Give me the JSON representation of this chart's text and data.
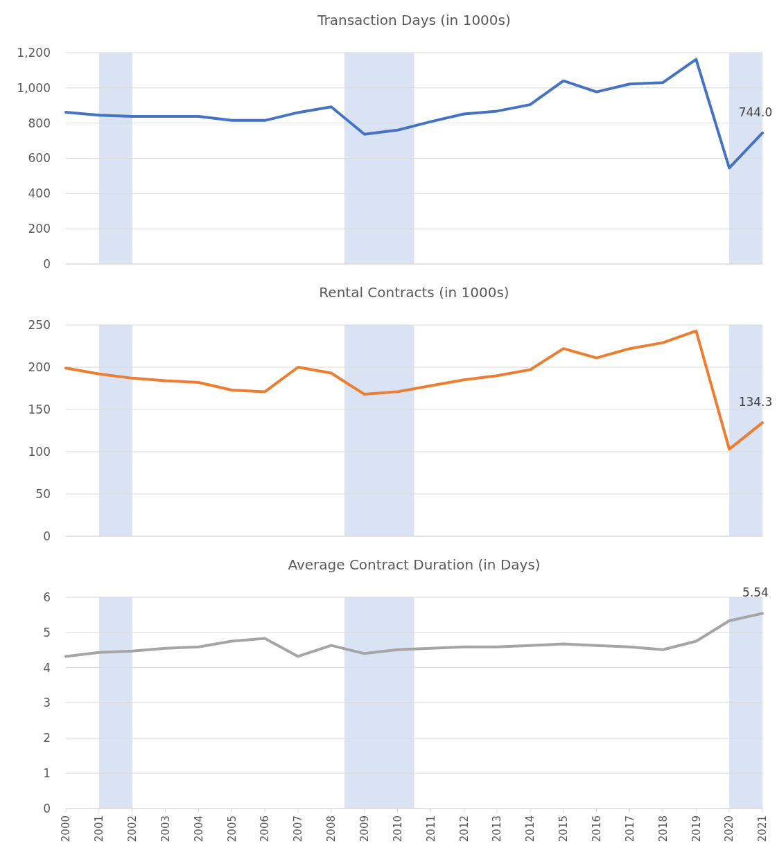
{
  "chart_data": [
    {
      "type": "line",
      "title": "Transaction Days (in 1000s)",
      "x": [
        2000,
        2001,
        2002,
        2003,
        2004,
        2005,
        2006,
        2007,
        2008,
        2009,
        2010,
        2011,
        2012,
        2013,
        2014,
        2015,
        2016,
        2017,
        2018,
        2019,
        2020,
        2021
      ],
      "xlim": [
        2000,
        2021
      ],
      "ylim": [
        0,
        1200
      ],
      "yticks": [
        {
          "value": 0,
          "label": "0"
        },
        {
          "value": 200,
          "label": "200"
        },
        {
          "value": 400,
          "label": "400"
        },
        {
          "value": 600,
          "label": "600"
        },
        {
          "value": 800,
          "label": "800"
        },
        {
          "value": 1000,
          "label": "1,000"
        },
        {
          "value": 1200,
          "label": "1,200"
        }
      ],
      "grid": "y",
      "tick_labels": "y",
      "series": [
        {
          "color": "#4472c4",
          "values": [
            862,
            845,
            838,
            838,
            838,
            815,
            815,
            860,
            892,
            737,
            760,
            808,
            852,
            868,
            905,
            1040,
            977,
            1022,
            1030,
            1162,
            545,
            744
          ],
          "value_labels": [
            null,
            null,
            null,
            null,
            null,
            null,
            null,
            null,
            null,
            null,
            null,
            null,
            null,
            null,
            null,
            null,
            null,
            null,
            null,
            null,
            null,
            "744.0"
          ]
        }
      ],
      "bands": [
        {
          "axis": "x",
          "from": 2001,
          "to": 2002,
          "color": "#dae3f3"
        },
        {
          "axis": "x",
          "from": 2008.4,
          "to": 2010.5,
          "color": "#dae3f3"
        },
        {
          "axis": "x",
          "from": 2020,
          "to": 2021,
          "color": "#dae3f3"
        }
      ]
    },
    {
      "type": "line",
      "title": "Rental Contracts (in 1000s)",
      "x": [
        2000,
        2001,
        2002,
        2003,
        2004,
        2005,
        2006,
        2007,
        2008,
        2009,
        2010,
        2011,
        2012,
        2013,
        2014,
        2015,
        2016,
        2017,
        2018,
        2019,
        2020,
        2021
      ],
      "xlim": [
        2000,
        2021
      ],
      "ylim": [
        0,
        250
      ],
      "yticks": [
        0,
        50,
        100,
        150,
        200,
        250
      ],
      "grid": "y",
      "tick_labels": "y",
      "series": [
        {
          "color": "#ed7d31",
          "values": [
            199,
            192,
            187,
            184,
            182,
            173,
            171,
            200,
            193,
            168,
            171,
            178,
            185,
            190,
            197,
            222,
            211,
            222,
            229,
            243,
            103,
            134.3
          ],
          "value_labels": [
            null,
            null,
            null,
            null,
            null,
            null,
            null,
            null,
            null,
            null,
            null,
            null,
            null,
            null,
            null,
            null,
            null,
            null,
            null,
            null,
            null,
            "134.3"
          ]
        }
      ],
      "bands": [
        {
          "axis": "x",
          "from": 2001,
          "to": 2002,
          "color": "#dae3f3"
        },
        {
          "axis": "x",
          "from": 2008.4,
          "to": 2010.5,
          "color": "#dae3f3"
        },
        {
          "axis": "x",
          "from": 2020,
          "to": 2021,
          "color": "#dae3f3"
        }
      ]
    },
    {
      "type": "line",
      "title": "Average Contract Duration (in Days)",
      "x": [
        2000,
        2001,
        2002,
        2003,
        2004,
        2005,
        2006,
        2007,
        2008,
        2009,
        2010,
        2011,
        2012,
        2013,
        2014,
        2015,
        2016,
        2017,
        2018,
        2019,
        2020,
        2021
      ],
      "xlim": [
        2000,
        2021
      ],
      "xticks": [
        2000,
        2001,
        2002,
        2003,
        2004,
        2005,
        2006,
        2007,
        2008,
        2009,
        2010,
        2011,
        2012,
        2013,
        2014,
        2015,
        2016,
        2017,
        2018,
        2019,
        2020,
        2021
      ],
      "ylim": [
        0,
        6
      ],
      "yticks": [
        0,
        1,
        2,
        3,
        4,
        5,
        6
      ],
      "grid": "y",
      "series": [
        {
          "color": "#a5a5a5",
          "values": [
            4.32,
            4.43,
            4.47,
            4.55,
            4.59,
            4.75,
            4.83,
            4.32,
            4.63,
            4.4,
            4.51,
            4.55,
            4.59,
            4.59,
            4.63,
            4.67,
            4.63,
            4.59,
            4.51,
            4.75,
            5.33,
            5.54
          ],
          "value_labels": [
            null,
            null,
            null,
            null,
            null,
            null,
            null,
            null,
            null,
            null,
            null,
            null,
            null,
            null,
            null,
            null,
            null,
            null,
            null,
            null,
            null,
            "5.54"
          ]
        }
      ],
      "bands": [
        {
          "axis": "x",
          "from": 2001,
          "to": 2002,
          "color": "#dae3f3"
        },
        {
          "axis": "x",
          "from": 2008.4,
          "to": 2010.5,
          "color": "#dae3f3"
        },
        {
          "axis": "x",
          "from": 2020,
          "to": 2021,
          "color": "#dae3f3"
        }
      ]
    }
  ]
}
